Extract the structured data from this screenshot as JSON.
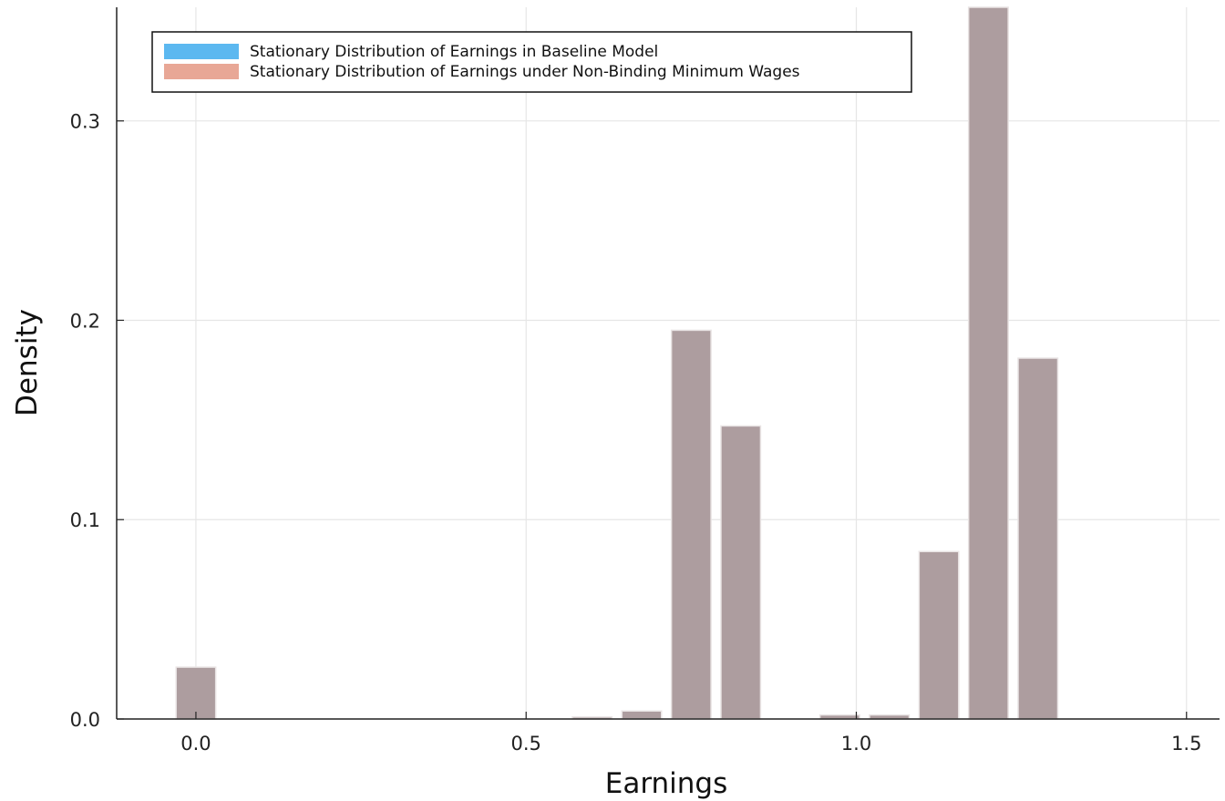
{
  "chart_data": {
    "type": "bar",
    "title": "",
    "xlabel": "Earnings",
    "ylabel": "Density",
    "xlim": [
      -0.12,
      1.55
    ],
    "ylim": [
      0,
      0.357
    ],
    "bar_width": 0.06,
    "grid": true,
    "legend_position": "top-left",
    "x_ticks": [
      {
        "value": 0.0,
        "label": "0.0"
      },
      {
        "value": 0.5,
        "label": "0.5"
      },
      {
        "value": 1.0,
        "label": "1.0"
      },
      {
        "value": 1.5,
        "label": "1.5"
      }
    ],
    "y_ticks": [
      {
        "value": 0.0,
        "label": "0.0"
      },
      {
        "value": 0.1,
        "label": "0.1"
      },
      {
        "value": 0.2,
        "label": "0.2"
      },
      {
        "value": 0.3,
        "label": "0.3"
      }
    ],
    "x": [
      0.0,
      0.6,
      0.675,
      0.75,
      0.825,
      0.975,
      1.05,
      1.125,
      1.2,
      1.275
    ],
    "series": [
      {
        "name": "Stationary Distribution of Earnings in Baseline Model",
        "color": "#5cb8f0",
        "values": [
          0.026,
          0.001,
          0.004,
          0.195,
          0.147,
          0.002,
          0.002,
          0.084,
          0.357,
          0.181
        ]
      },
      {
        "name": "Stationary Distribution of Earnings under Non-Binding Minimum Wages",
        "color": "#e8a796",
        "values": [
          0.026,
          0.001,
          0.004,
          0.195,
          0.147,
          0.002,
          0.002,
          0.084,
          0.357,
          0.181
        ]
      }
    ],
    "overlap_color": "#ad9d9f"
  }
}
